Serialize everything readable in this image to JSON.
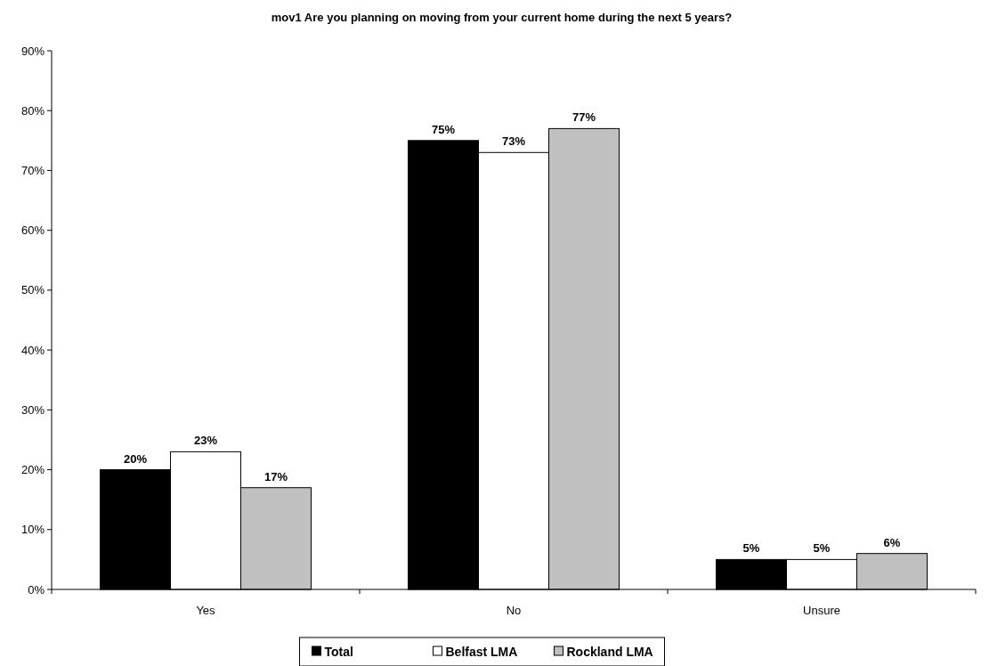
{
  "chart_data": {
    "type": "bar",
    "title": "mov1 Are you planning on moving from your current home during the next 5 years?",
    "categories": [
      "Yes",
      "No",
      "Unsure"
    ],
    "series": [
      {
        "name": "Total",
        "color": "#000000",
        "values": [
          20,
          75,
          5
        ],
        "value_labels": [
          "20%",
          "75%",
          "5%"
        ]
      },
      {
        "name": "Belfast LMA",
        "color": "#ffffff",
        "values": [
          23,
          73,
          5
        ],
        "value_labels": [
          "23%",
          "73%",
          "5%"
        ]
      },
      {
        "name": "Rockland LMA",
        "color": "#c0c0c0",
        "values": [
          17,
          77,
          6
        ],
        "value_labels": [
          "17%",
          "77%",
          "6%"
        ]
      }
    ],
    "ylim": [
      0,
      90
    ],
    "yticks": [
      {
        "value": 0,
        "label": "0%"
      },
      {
        "value": 10,
        "label": "10%"
      },
      {
        "value": 20,
        "label": "20%"
      },
      {
        "value": 30,
        "label": "30%"
      },
      {
        "value": 40,
        "label": "40%"
      },
      {
        "value": 50,
        "label": "50%"
      },
      {
        "value": 60,
        "label": "60%"
      },
      {
        "value": 70,
        "label": "70%"
      },
      {
        "value": 80,
        "label": "80%"
      },
      {
        "value": 90,
        "label": "90%"
      }
    ],
    "legend": "bottom",
    "grid": false
  }
}
